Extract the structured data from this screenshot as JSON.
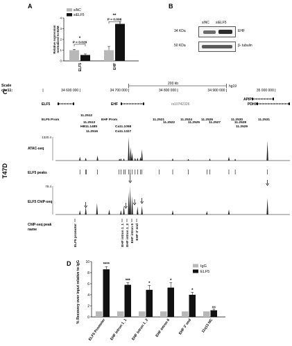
{
  "panels": {
    "a": {
      "letter": "A",
      "ylabel_line1": "Relative expression",
      "ylabel_line2": "normalized to B2M",
      "yticks": [
        "0",
        "1",
        "2",
        "3",
        "4"
      ],
      "legend": [
        {
          "label": "siNC",
          "color": "#b8b8b8"
        },
        {
          "label": "siELF5",
          "color": "#111111"
        }
      ],
      "p_elf5": "P = 0.029",
      "p_ehf": "P = 0.006",
      "star_elf5": "*",
      "star_ehf": "**",
      "xlabels": [
        "ELF5",
        "EHF"
      ]
    },
    "b": {
      "letter": "B",
      "col_labels": [
        "siNC",
        "siELF5"
      ],
      "left_labels": [
        "34 KDa",
        "50 KDa"
      ],
      "right_labels": [
        "EHF",
        "β- tubulin"
      ]
    },
    "c": {
      "letter": "C",
      "scale_label": "Scale",
      "scale_value": "200 kb",
      "genome": "hg19",
      "chrom": "chr11:",
      "coords": [
        "34 600 000",
        "34 700 000",
        "34 800 000",
        "34 900 000",
        "35 000 000"
      ],
      "genes": [
        "ELF5",
        "EHF",
        "rs10742326",
        "APIP",
        "PDHX"
      ],
      "peak_label_row1": [
        "ELF5 Prom",
        "EHF Prom",
        "11.2521",
        "11.2524",
        "11.2526",
        "11.2530",
        "11.2531"
      ],
      "peak_label_row2": [
        "11.2512",
        "11.2513",
        "HB11.1485",
        "11.2516",
        "Ca11.1058",
        "Ca11.1327",
        "11.2522",
        "11.2525",
        "11.2527",
        "11.2528",
        "11.2529"
      ],
      "cell_line": "T47D",
      "tracks": {
        "atac_label": "ATAC-seq",
        "atac_max": "1320.4",
        "peaks_label": "ELF5 peaks",
        "chip_label": "ELF5  ChIP-seq",
        "chip_max": "79.4",
        "names_label_line1": "ChIP-seq peak",
        "names_label_line2": "name"
      },
      "chip_peak_names": [
        "ELF5 promoter",
        "EHF intron 1_1",
        "EHF intron 1_2",
        "EHF intron 6",
        "EHF 3' end"
      ]
    },
    "d": {
      "letter": "D",
      "ylabel": "% Recovery over input relative to IgG",
      "yticks": [
        "0",
        "2",
        "4",
        "6",
        "8",
        "10"
      ],
      "legend": [
        {
          "label": "IgG",
          "color": "#b8b8b8"
        },
        {
          "label": "ELF5",
          "color": "#111111"
        }
      ],
      "significance": [
        "****",
        "***",
        "*",
        "*",
        "*",
        "ns"
      ],
      "categories": [
        "ELF5 Promoter",
        "EHF intron 1_1",
        "EHF intron 1_2",
        "EHF intron 6",
        "EHF 3' end",
        "11q13 NC"
      ]
    }
  },
  "chart_data": [
    {
      "type": "bar",
      "panel": "A",
      "categories": [
        "ELF5",
        "EHF"
      ],
      "series": [
        {
          "name": "siNC",
          "values": [
            1.0,
            1.0
          ],
          "errors": [
            0.08,
            0.35
          ]
        },
        {
          "name": "siELF5",
          "values": [
            0.55,
            3.45
          ],
          "errors": [
            0.1,
            0.22
          ]
        }
      ],
      "ylim": [
        0,
        4
      ],
      "ylabel": "Relative expression normalized to B2M"
    },
    {
      "type": "bar",
      "panel": "D",
      "categories": [
        "ELF5 Promoter",
        "EHF intron 1_1",
        "EHF intron 1_2",
        "EHF intron 6",
        "EHF 3' end",
        "11q13 NC"
      ],
      "series": [
        {
          "name": "IgG",
          "values": [
            1,
            1,
            1,
            1,
            1,
            1
          ],
          "errors": [
            0,
            0,
            0,
            0,
            0,
            0
          ]
        },
        {
          "name": "ELF5",
          "values": [
            8.6,
            5.8,
            4.9,
            5.3,
            4.0,
            1.2
          ],
          "errors": [
            0.5,
            0.4,
            0.8,
            0.9,
            0.45,
            0.25
          ]
        }
      ],
      "ylim": [
        0,
        10
      ],
      "ylabel": "% Recovery over input relative to IgG"
    },
    {
      "type": "line",
      "panel": "C",
      "name": "ATAC-seq",
      "ymax": 1320.4,
      "peaks": [
        {
          "x": 34600000,
          "y": 220
        },
        {
          "x": 34612000,
          "y": 160
        },
        {
          "x": 34636000,
          "y": 280
        },
        {
          "x": 34681000,
          "y": 100
        },
        {
          "x": 34684000,
          "y": 120
        },
        {
          "x": 34690000,
          "y": 120
        },
        {
          "x": 34700000,
          "y": 1320
        },
        {
          "x": 34704000,
          "y": 760
        },
        {
          "x": 34707000,
          "y": 440
        },
        {
          "x": 34713000,
          "y": 150
        },
        {
          "x": 34718000,
          "y": 160
        },
        {
          "x": 34724000,
          "y": 200
        },
        {
          "x": 34727000,
          "y": 640
        },
        {
          "x": 34790000,
          "y": 120
        },
        {
          "x": 34822000,
          "y": 90
        },
        {
          "x": 34866000,
          "y": 110
        },
        {
          "x": 34905000,
          "y": 220
        },
        {
          "x": 34918000,
          "y": 100
        },
        {
          "x": 34984000,
          "y": 1100
        }
      ]
    },
    {
      "type": "line",
      "panel": "C",
      "name": "ELF5 ChIP-seq",
      "ymax": 79.4,
      "peaks": [
        {
          "x": 34600000,
          "y": 12
        },
        {
          "x": 34612000,
          "y": 22
        },
        {
          "x": 34635000,
          "y": 32
        },
        {
          "x": 34660000,
          "y": 14
        },
        {
          "x": 34684000,
          "y": 12
        },
        {
          "x": 34690000,
          "y": 25
        },
        {
          "x": 34700000,
          "y": 62
        },
        {
          "x": 34703000,
          "y": 79
        },
        {
          "x": 34707000,
          "y": 52
        },
        {
          "x": 34718000,
          "y": 22
        },
        {
          "x": 34727000,
          "y": 24
        },
        {
          "x": 34790000,
          "y": 12
        },
        {
          "x": 34860000,
          "y": 10
        },
        {
          "x": 34905000,
          "y": 14
        },
        {
          "x": 34984000,
          "y": 46
        }
      ]
    }
  ]
}
